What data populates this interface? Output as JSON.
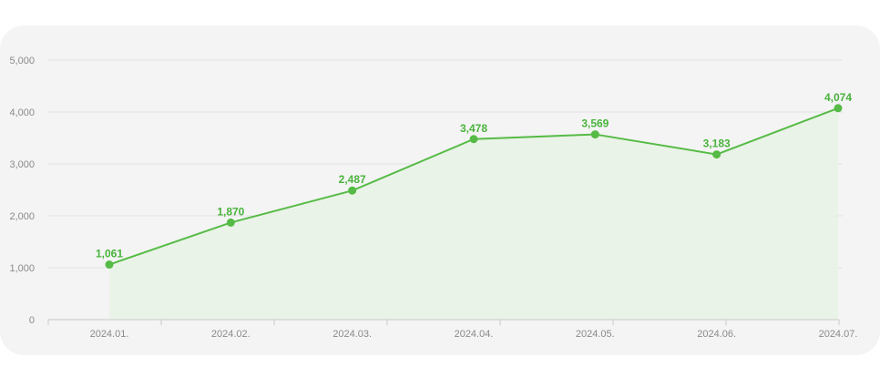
{
  "chart_data": {
    "type": "area",
    "categories": [
      "2024.01.",
      "2024.02.",
      "2024.03.",
      "2024.04.",
      "2024.05.",
      "2024.06.",
      "2024.07."
    ],
    "values": [
      1061,
      1870,
      2487,
      3478,
      3569,
      3183,
      4074
    ],
    "data_labels": [
      "1,061",
      "1,870",
      "2,487",
      "3,478",
      "3,569",
      "3,183",
      "4,074"
    ],
    "y_ticks": [
      "0",
      "1,000",
      "2,000",
      "3,000",
      "4,000",
      "5,000"
    ],
    "y_tick_values": [
      0,
      1000,
      2000,
      3000,
      4000,
      5000
    ],
    "ylim": [
      0,
      5000
    ],
    "grid": true,
    "legend": "none",
    "colors": {
      "line": "#56bb46",
      "fill": "#e9f3e6",
      "grid": "#e2e2e2",
      "label": "#49b33c"
    }
  }
}
